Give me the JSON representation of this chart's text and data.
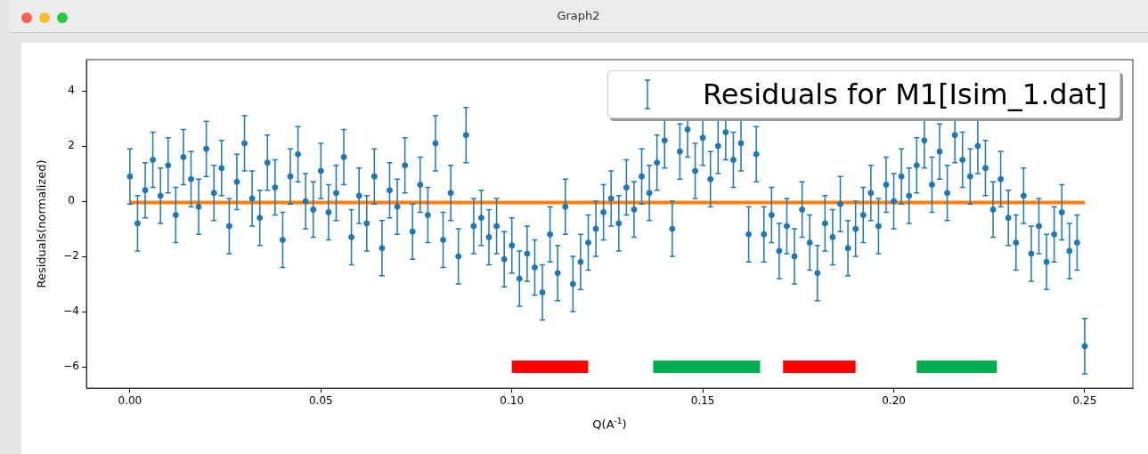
{
  "chart_data": {
    "type": "scatter",
    "title": "Graph2",
    "xlabel": "Q(A$^{-1}$)",
    "ylabel": "Residuals(normalized)",
    "xlim": [
      -0.0114,
      0.2626
    ],
    "ylim": [
      -6.77,
      5.13
    ],
    "xticks": [
      {
        "value": 0,
        "label": "0.00"
      },
      {
        "value": 0.05,
        "label": "0.05"
      },
      {
        "value": 0.1,
        "label": "0.10"
      },
      {
        "value": 0.15,
        "label": "0.15"
      },
      {
        "value": 0.2,
        "label": "0.20"
      },
      {
        "value": 0.25,
        "label": "0.25"
      }
    ],
    "yticks": [
      {
        "value": -6,
        "label": "−6"
      },
      {
        "value": -4,
        "label": "−4"
      },
      {
        "value": -2,
        "label": "−2"
      },
      0,
      2,
      4
    ],
    "legend": "top right",
    "marker": "circle",
    "series": [
      {
        "type": "scatter",
        "name": "Residuals for M1[Isim_1.dat]",
        "color": "#1f77b4",
        "x": [
          0,
          0.002,
          0.004,
          0.006,
          0.008,
          0.01,
          0.012,
          0.014,
          0.016,
          0.018,
          0.02,
          0.022,
          0.024,
          0.026,
          0.028,
          0.03,
          0.032,
          0.034,
          0.036,
          0.038,
          0.04,
          0.042,
          0.044,
          0.046,
          0.048,
          0.05,
          0.052,
          0.054,
          0.056,
          0.058,
          0.06,
          0.062,
          0.064,
          0.066,
          0.068,
          0.07,
          0.072,
          0.074,
          0.076,
          0.078,
          0.08,
          0.082,
          0.084,
          0.086,
          0.088,
          0.09,
          0.092,
          0.094,
          0.096,
          0.098,
          0.1,
          0.102,
          0.104,
          0.106,
          0.108,
          0.11,
          0.112,
          0.114,
          0.116,
          0.118,
          0.12,
          0.122,
          0.124,
          0.126,
          0.128,
          0.13,
          0.132,
          0.134,
          0.136,
          0.138,
          0.14,
          0.142,
          0.144,
          0.146,
          0.148,
          0.15,
          0.152,
          0.154,
          0.156,
          0.158,
          0.16,
          0.162,
          0.164,
          0.166,
          0.168,
          0.17,
          0.172,
          0.174,
          0.176,
          0.178,
          0.18,
          0.182,
          0.184,
          0.186,
          0.188,
          0.19,
          0.192,
          0.194,
          0.196,
          0.198,
          0.2,
          0.202,
          0.204,
          0.206,
          0.208,
          0.21,
          0.212,
          0.214,
          0.216,
          0.218,
          0.22,
          0.222,
          0.224,
          0.226,
          0.228,
          0.23,
          0.232,
          0.234,
          0.236,
          0.238,
          0.24,
          0.242,
          0.244,
          0.246,
          0.248,
          0.25
        ],
        "values": [
          0.9,
          -0.8,
          0.4,
          1.5,
          0.2,
          1.3,
          -0.5,
          1.6,
          0.8,
          -0.2,
          1.9,
          0.3,
          1.2,
          -0.9,
          0.7,
          2.1,
          0.1,
          -0.6,
          1.4,
          0.5,
          -1.4,
          0.9,
          1.7,
          0.0,
          -0.3,
          1.1,
          -0.4,
          0.3,
          1.6,
          -1.3,
          0.2,
          -0.8,
          0.9,
          -1.7,
          0.4,
          -0.2,
          1.3,
          -1.1,
          0.6,
          -0.5,
          2.1,
          -1.4,
          0.3,
          -2.0,
          2.4,
          -0.9,
          -0.6,
          -1.3,
          -0.9,
          -2.1,
          -1.6,
          -2.8,
          -1.9,
          -2.4,
          -3.3,
          -1.2,
          -2.6,
          -0.2,
          -3.0,
          -2.2,
          -1.5,
          -1.0,
          -0.4,
          0.1,
          -0.8,
          0.5,
          -0.3,
          0.9,
          0.3,
          1.4,
          2.2,
          -1.0,
          1.8,
          2.6,
          1.1,
          2.3,
          0.8,
          2.0,
          2.5,
          1.5,
          2.1,
          -1.2,
          1.7,
          -1.2,
          -0.5,
          -1.8,
          -0.9,
          -2.0,
          -0.3,
          -1.5,
          -2.6,
          -0.8,
          -1.3,
          -0.1,
          -1.7,
          -1.0,
          -0.5,
          0.3,
          -0.9,
          0.6,
          0.0,
          0.9,
          0.2,
          1.3,
          2.2,
          0.6,
          1.8,
          0.3,
          2.4,
          1.5,
          0.9,
          2.0,
          1.2,
          -0.3,
          0.8,
          -0.6,
          -1.5,
          0.2,
          -1.9,
          -0.9,
          -2.2,
          -1.2,
          -0.4,
          -1.8,
          -1.5,
          -5.25
        ],
        "errors": [
          1,
          1,
          1,
          1,
          1,
          1,
          1,
          1,
          1,
          1,
          1,
          1,
          1,
          1,
          1,
          1,
          1,
          1,
          1,
          1,
          1,
          1,
          1,
          1,
          1,
          1,
          1,
          1,
          1,
          1,
          1,
          1,
          1,
          1,
          1,
          1,
          1,
          1,
          1,
          1,
          1,
          1,
          1,
          1,
          1,
          1,
          1,
          1,
          1,
          1,
          1,
          1,
          1,
          1,
          1,
          1,
          1,
          1,
          1,
          1,
          1,
          1,
          1,
          1,
          1,
          1,
          1,
          1,
          1,
          1,
          1,
          1,
          1,
          1,
          1,
          1,
          1,
          1,
          1,
          1,
          1,
          1,
          1,
          1,
          1,
          1,
          1,
          1,
          1,
          1,
          1,
          1,
          1,
          1,
          1,
          1,
          1,
          1,
          1,
          1,
          1,
          1,
          1,
          1,
          1,
          1,
          1,
          1,
          1,
          1,
          1,
          1,
          1,
          1,
          1,
          1,
          1,
          1,
          1,
          1,
          1,
          1,
          1,
          1,
          1,
          1
        ]
      },
      {
        "type": "line",
        "marker": "none",
        "color": "#ff7f0e",
        "x": [
          0,
          0.25
        ],
        "values": [
          -0.05,
          -0.05
        ]
      },
      {
        "type": "line",
        "marker": "none",
        "color": "#ff0000",
        "x": [
          0.1,
          0.12
        ],
        "values": [
          -6,
          -6
        ]
      },
      {
        "type": "line",
        "marker": "none",
        "color": "#00b050",
        "x": [
          0.137,
          0.165
        ],
        "values": [
          -6,
          -6
        ]
      },
      {
        "type": "line",
        "marker": "none",
        "color": "#ff0000",
        "x": [
          0.171,
          0.19
        ],
        "values": [
          -6,
          -6
        ]
      },
      {
        "type": "line",
        "marker": "none",
        "color": "#00b050",
        "x": [
          0.206,
          0.227
        ],
        "values": [
          -6,
          -6
        ]
      }
    ]
  }
}
